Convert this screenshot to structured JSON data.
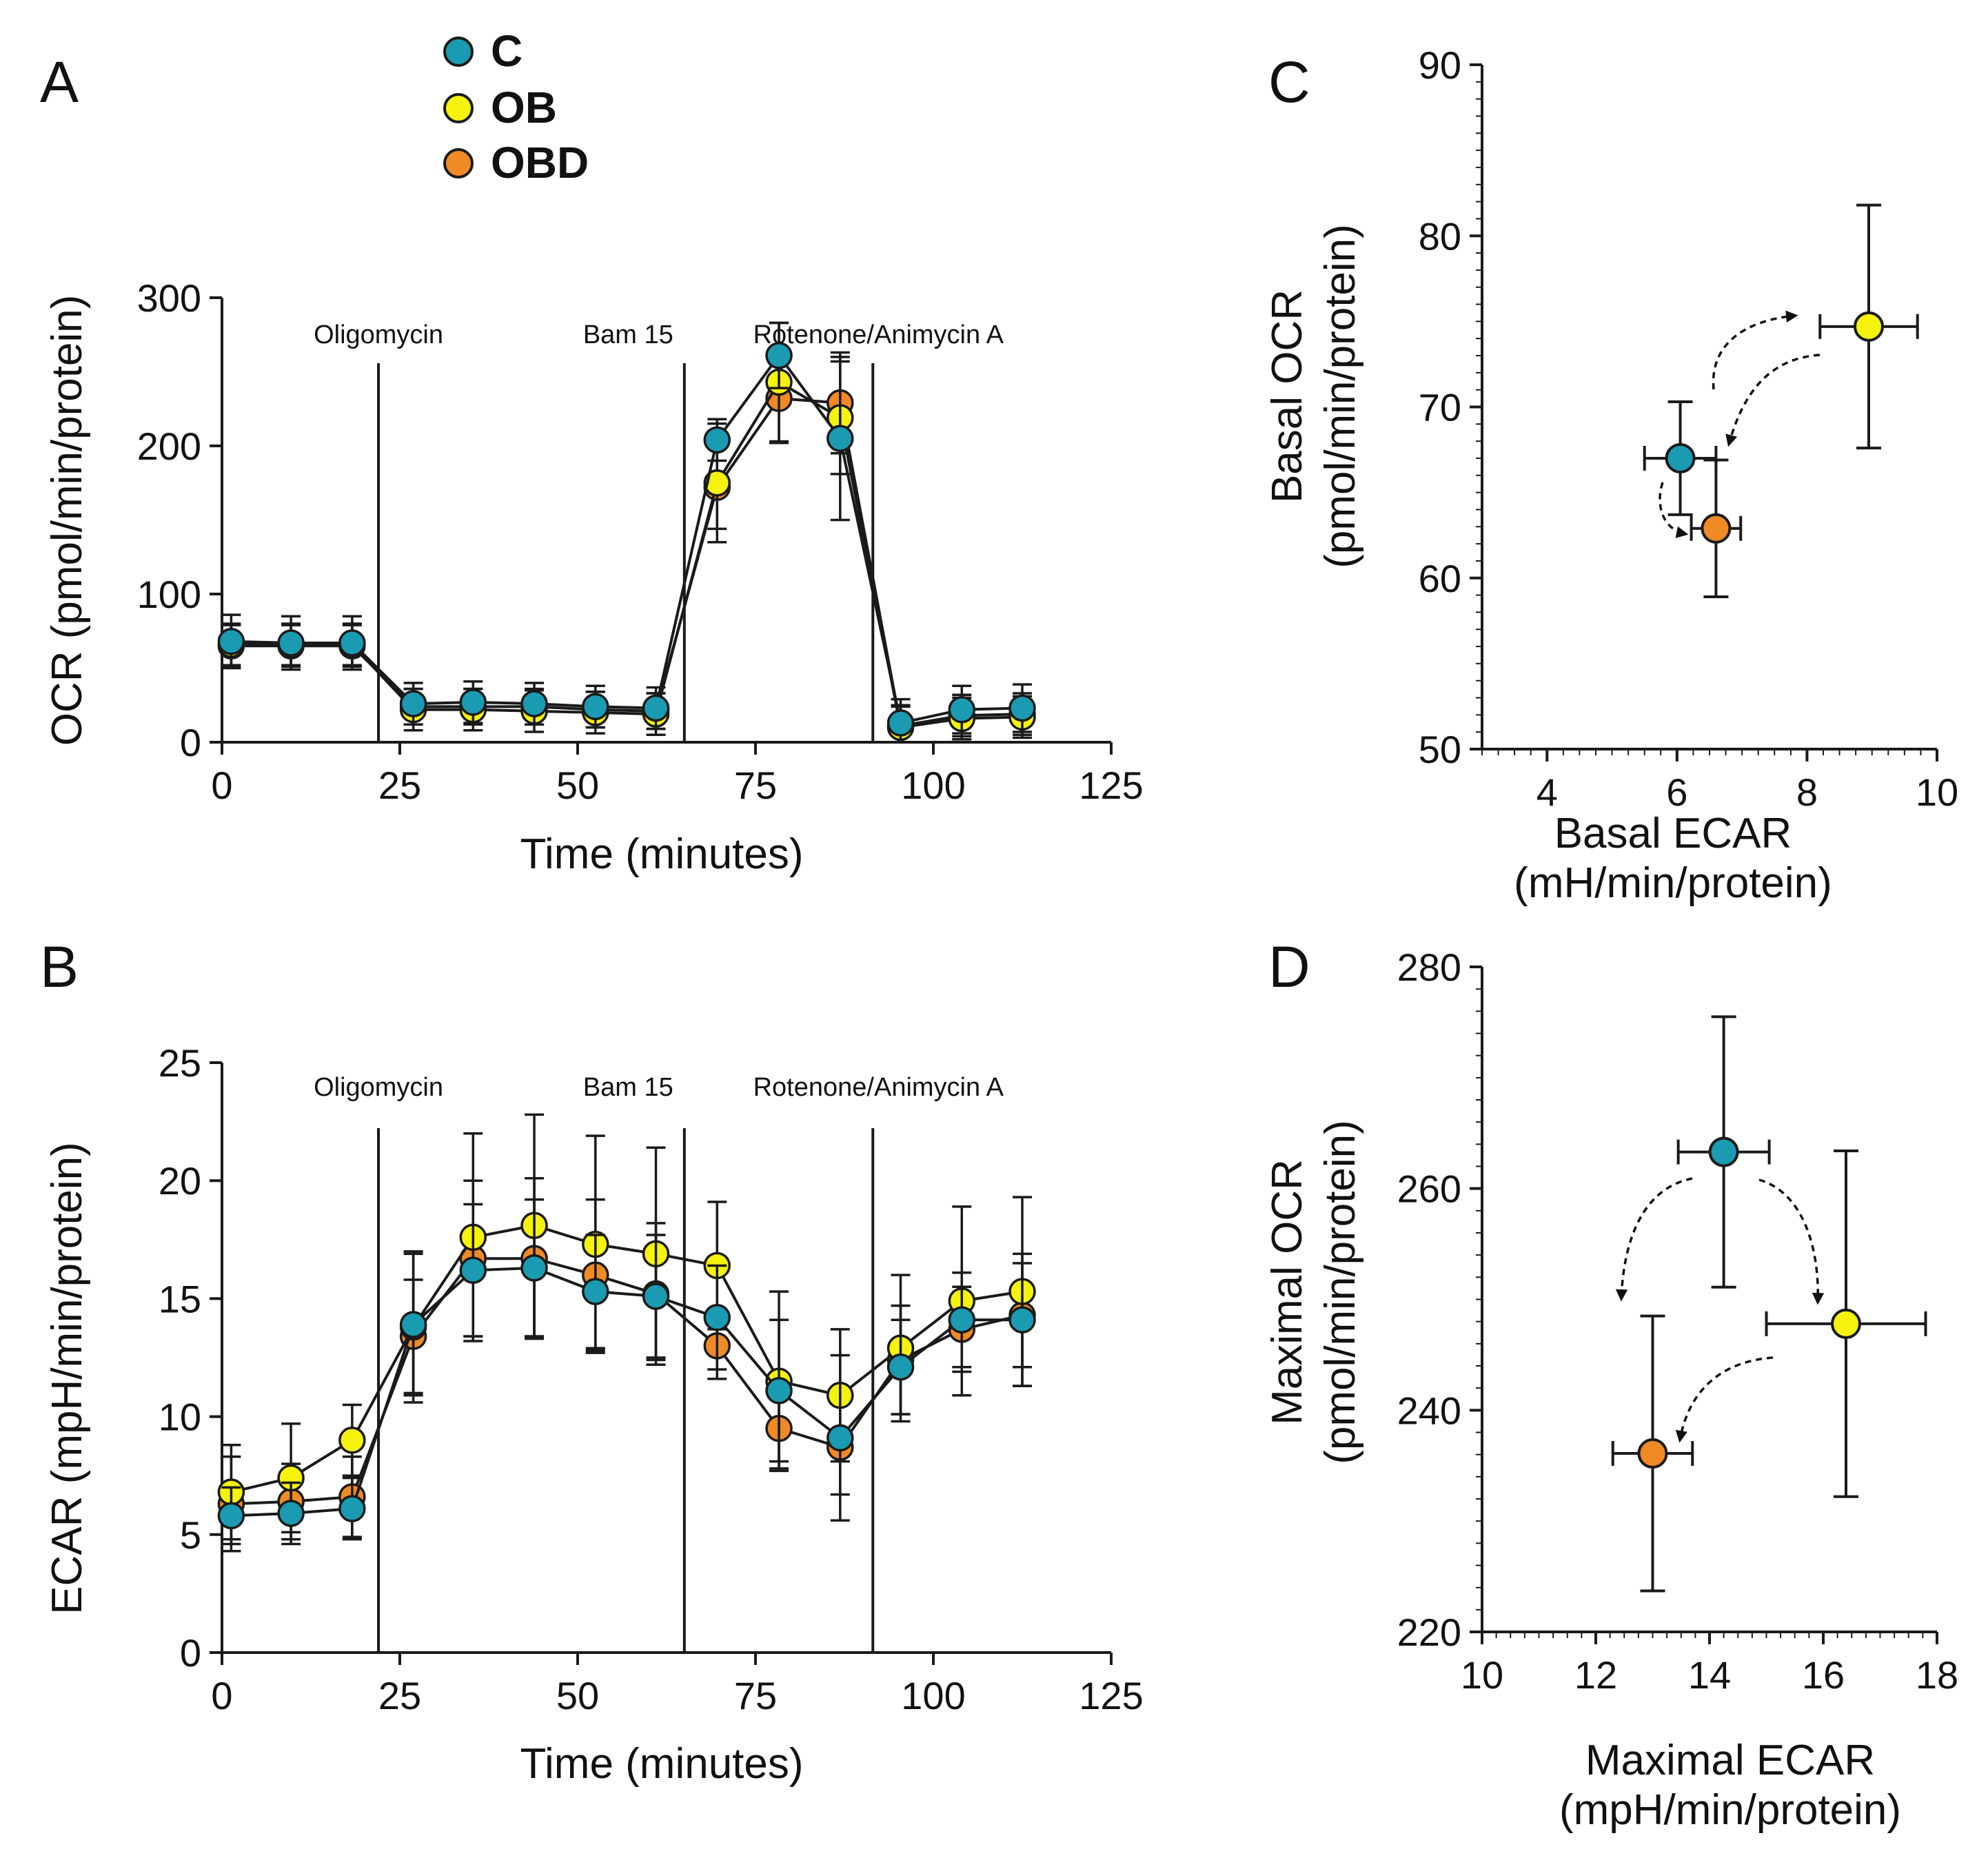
{
  "legend": [
    {
      "label": "C",
      "color": "#1a9bb1"
    },
    {
      "label": "OB",
      "color": "#f5f20e"
    },
    {
      "label": "OBD",
      "color": "#f08a24"
    }
  ],
  "chart_data": [
    {
      "panel_label": "A",
      "type": "line",
      "xlabel": "Time (minutes)",
      "ylabel": "OCR (pmol/min/protein)",
      "xlim": [
        0,
        125
      ],
      "ylim": [
        0,
        300
      ],
      "xticks": [
        0,
        25,
        50,
        75,
        100,
        125
      ],
      "yticks": [
        0,
        100,
        200,
        300
      ],
      "events": [
        {
          "label": "Oligomycin",
          "x": 22
        },
        {
          "label": "Bam 15",
          "x": 65
        },
        {
          "label": "Rotenone/Animycin A",
          "x": 91.5
        }
      ],
      "x": [
        1.3,
        9.7,
        18.3,
        26.9,
        35.3,
        43.9,
        52.5,
        61,
        69.6,
        78.3,
        86.9,
        95.4,
        104,
        112.5
      ],
      "series": [
        {
          "name": "OBD",
          "color": "#f08a24",
          "values": [
            65,
            65,
            65,
            24,
            24,
            24,
            22,
            21,
            172,
            232,
            229,
            11,
            18,
            19
          ],
          "errors": [
            14,
            14,
            14,
            12,
            12,
            12,
            12,
            12,
            28,
            30,
            34,
            14,
            14,
            14
          ]
        },
        {
          "name": "OB",
          "color": "#f5f20e",
          "values": [
            66,
            66,
            66,
            22,
            22,
            21,
            20,
            19,
            175,
            243,
            219,
            10,
            16,
            17
          ],
          "errors": [
            14,
            14,
            14,
            14,
            14,
            14,
            14,
            14,
            40,
            40,
            38,
            14,
            14,
            14
          ]
        },
        {
          "name": "C",
          "color": "#1a9bb1",
          "values": [
            68,
            67,
            67,
            26,
            27,
            26,
            24,
            23,
            204,
            261,
            205,
            13,
            22,
            23
          ],
          "errors": [
            18,
            18,
            18,
            14,
            14,
            14,
            14,
            14,
            14,
            22,
            55,
            16,
            16,
            16
          ]
        }
      ]
    },
    {
      "panel_label": "B",
      "type": "line",
      "xlabel": "Time (minutes)",
      "ylabel": "ECAR (mpH/min/protein)",
      "xlim": [
        0,
        125
      ],
      "ylim": [
        0,
        25
      ],
      "xticks": [
        0,
        25,
        50,
        75,
        100,
        125
      ],
      "yticks": [
        0,
        5,
        10,
        15,
        20,
        25
      ],
      "events": [
        {
          "label": "Oligomycin",
          "x": 22
        },
        {
          "label": "Bam 15",
          "x": 65
        },
        {
          "label": "Rotenone/Animycin A",
          "x": 91.5
        }
      ],
      "x": [
        1.3,
        9.7,
        18.3,
        26.9,
        35.3,
        43.9,
        52.5,
        61,
        69.6,
        78.3,
        86.9,
        95.4,
        104,
        112.5
      ],
      "series": [
        {
          "name": "OBD",
          "color": "#f08a24",
          "values": [
            6.3,
            6.4,
            6.6,
            13.4,
            16.7,
            16.7,
            16.0,
            15.2,
            13.0,
            9.5,
            8.7,
            12.4,
            13.7,
            14.3
          ],
          "errors": [
            2.0,
            1.6,
            1.7,
            2.4,
            3.3,
            3.4,
            3.2,
            3.0,
            1.4,
            1.7,
            2.0,
            2.3,
            1.8,
            2.2
          ]
        },
        {
          "name": "OB",
          "color": "#f5f20e",
          "values": [
            6.8,
            7.4,
            9.0,
            13.8,
            17.6,
            18.1,
            17.3,
            16.9,
            16.4,
            11.5,
            10.9,
            12.9,
            14.9,
            15.3
          ],
          "errors": [
            2.0,
            2.3,
            1.5,
            3.2,
            4.4,
            4.7,
            4.6,
            4.5,
            2.7,
            3.8,
            2.8,
            3.1,
            4.0,
            4.0
          ]
        },
        {
          "name": "C",
          "color": "#1a9bb1",
          "values": [
            5.8,
            5.9,
            6.1,
            13.9,
            16.2,
            16.3,
            15.3,
            15.1,
            14.2,
            11.1,
            9.1,
            12.1,
            14.1,
            14.1
          ],
          "errors": [
            1.2,
            1.3,
            1.3,
            3.0,
            2.8,
            2.9,
            2.4,
            2.6,
            2.2,
            3.0,
            3.5,
            2.0,
            2.0,
            2.8
          ]
        }
      ]
    },
    {
      "panel_label": "C",
      "type": "scatter",
      "xlabel": [
        "Basal ECAR",
        "(mH/min/protein)"
      ],
      "ylabel": [
        "Basal OCR",
        "(pmol/min/protein)"
      ],
      "xlim": [
        3,
        10
      ],
      "ylim": [
        50,
        90
      ],
      "xticks": [
        4,
        6,
        8,
        10
      ],
      "yticks": [
        50,
        60,
        70,
        80,
        90
      ],
      "points": [
        {
          "name": "C",
          "color": "#1a9bb1",
          "x": 6.05,
          "y": 67.0,
          "xerr": 0.55,
          "yerr": 3.3
        },
        {
          "name": "OBD",
          "color": "#f08a24",
          "x": 6.6,
          "y": 62.9,
          "xerr": 0.38,
          "yerr": 4.0
        },
        {
          "name": "OB",
          "color": "#f5f20e",
          "x": 8.95,
          "y": 74.7,
          "xerr": 0.75,
          "yerr": 7.1
        }
      ]
    },
    {
      "panel_label": "D",
      "type": "scatter",
      "xlabel": [
        "Maximal ECAR",
        "(mpH/min/protein)"
      ],
      "ylabel": [
        "Maximal OCR",
        "(pmol/min/protein)"
      ],
      "xlim": [
        10,
        18
      ],
      "ylim": [
        220,
        280
      ],
      "xticks": [
        10,
        12,
        14,
        16,
        18
      ],
      "yticks": [
        220,
        240,
        260,
        280
      ],
      "points": [
        {
          "name": "C",
          "color": "#1a9bb1",
          "x": 14.25,
          "y": 263.3,
          "xerr": 0.8,
          "yerr": 12.2
        },
        {
          "name": "OB",
          "color": "#f5f20e",
          "x": 16.4,
          "y": 247.8,
          "xerr": 1.4,
          "yerr": 15.6
        },
        {
          "name": "OBD",
          "color": "#f08a24",
          "x": 13.0,
          "y": 236.1,
          "xerr": 0.7,
          "yerr": 12.4
        }
      ]
    }
  ]
}
